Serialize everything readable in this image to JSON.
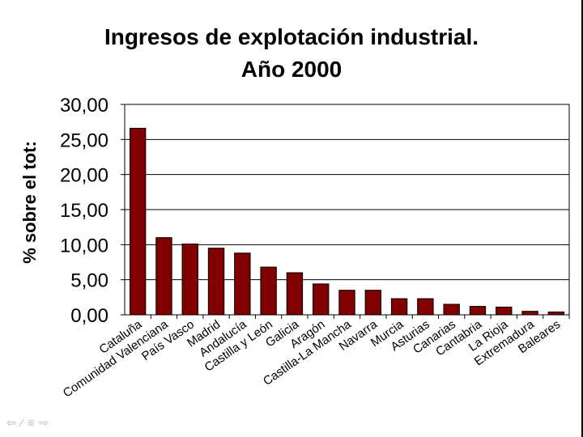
{
  "chart_data": {
    "type": "bar",
    "title_lines": [
      "Ingresos de explotación industrial.",
      "Año 2000"
    ],
    "ylabel": "% sobre el tot:",
    "xlabel": "",
    "ylim": [
      0,
      30
    ],
    "yticks": [
      "0,00",
      "5,00",
      "10,00",
      "15,00",
      "20,00",
      "25,00",
      "30,00"
    ],
    "ytick_values": [
      0,
      5,
      10,
      15,
      20,
      25,
      30
    ],
    "grid": true,
    "bar_color": "#800000",
    "categories": [
      "Cataluña",
      "Comunidad Valenciana",
      "País Vasco",
      "Madrid",
      "Andalucía",
      "Castilla y León",
      "Galicia",
      "Aragón",
      "Castilla-La Mancha",
      "Navarra",
      "Murcia",
      "Asturias",
      "Canarias",
      "Cantabria",
      "La Rioja",
      "Extremadura",
      "Baleares"
    ],
    "values": [
      26.6,
      11.0,
      10.1,
      9.5,
      8.8,
      6.8,
      6.0,
      4.4,
      3.5,
      3.5,
      2.3,
      2.3,
      1.5,
      1.2,
      1.1,
      0.5,
      0.4
    ]
  },
  "nav_icons": [
    "arrow-left-icon",
    "pencil-icon",
    "menu-icon",
    "arrow-right-icon"
  ]
}
